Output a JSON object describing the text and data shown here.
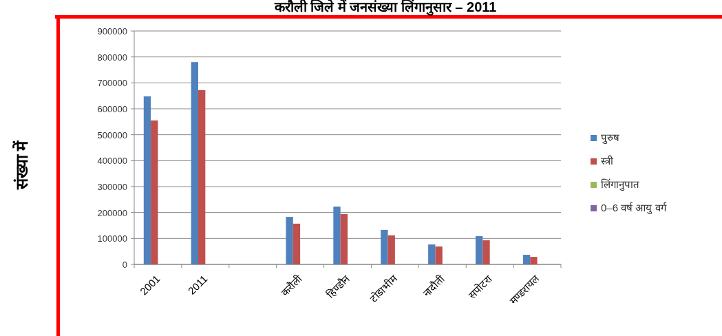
{
  "chart_data": {
    "type": "bar",
    "title": "करौली जिले में जनसंख्या लिंगानुसार – 2011",
    "ylabel": "संख्या में",
    "categories": [
      "2001",
      "2011",
      null,
      "करौली",
      "हिण्डौन",
      "टोडाभीम",
      "नादौती",
      "सपोटरा",
      "मण्डरायल"
    ],
    "series": [
      {
        "name": "पुरुष",
        "color": "#4f81bd",
        "values": [
          648000,
          780000,
          null,
          183000,
          223000,
          133000,
          77000,
          109000,
          37000
        ]
      },
      {
        "name": "स्त्री",
        "color": "#c0504d",
        "values": [
          555000,
          672000,
          null,
          157000,
          194000,
          112000,
          69000,
          93000,
          29000
        ]
      },
      {
        "name": "लिंगानुपात",
        "color": "#9bbb59",
        "values": [
          null,
          null,
          null,
          null,
          null,
          null,
          null,
          null,
          null
        ]
      },
      {
        "name": "0–6 वर्ष आयु वर्ग",
        "color": "#8064a2",
        "values": [
          null,
          null,
          null,
          null,
          null,
          null,
          null,
          null,
          null
        ]
      }
    ],
    "ylim": [
      0,
      900000
    ],
    "yticks": [
      0,
      100000,
      200000,
      300000,
      400000,
      500000,
      600000,
      700000,
      800000,
      900000
    ],
    "grid": "y",
    "legend": "right"
  }
}
